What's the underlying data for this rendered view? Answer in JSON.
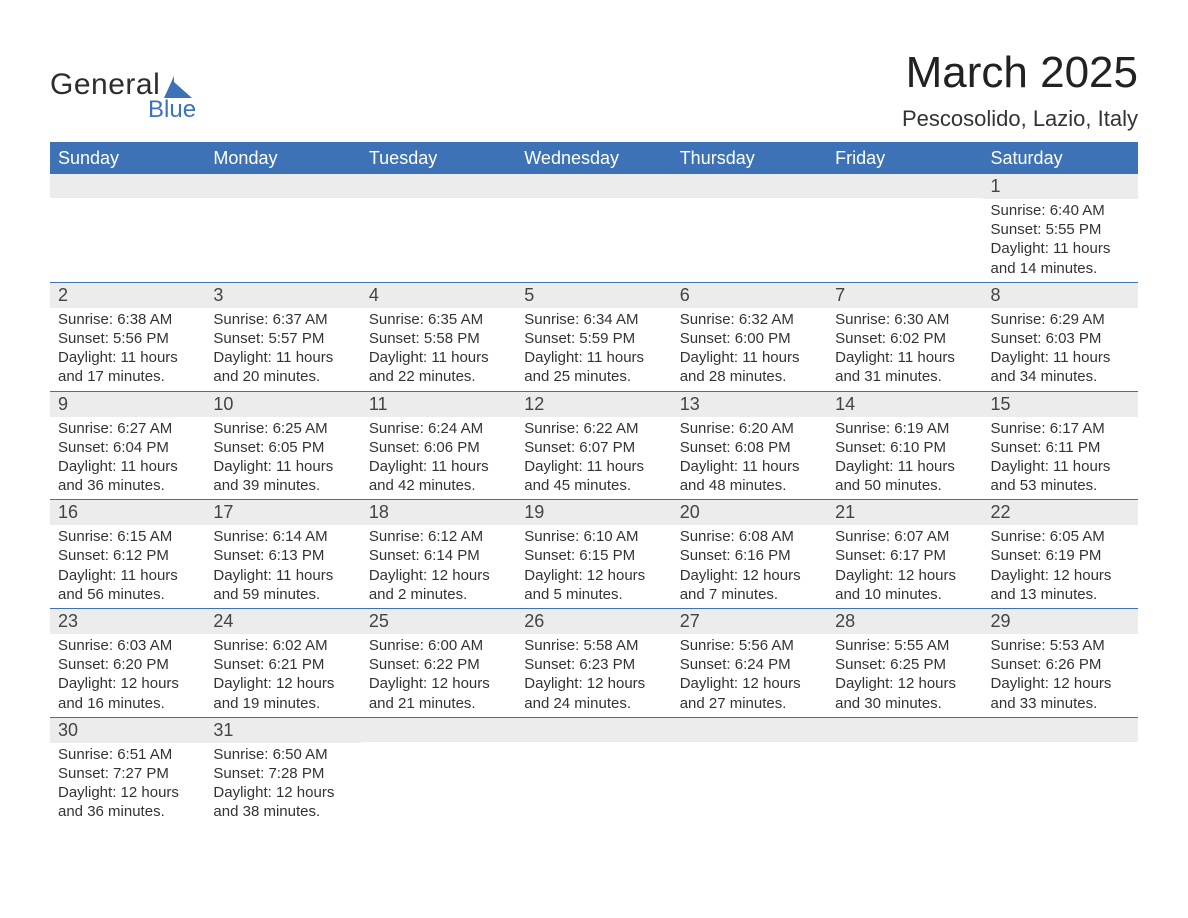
{
  "brand": {
    "general": "General",
    "blue": "Blue",
    "shape_color": "#3d73b6"
  },
  "header": {
    "month_title": "March 2025",
    "location": "Pescosolido, Lazio, Italy"
  },
  "colors": {
    "header_bg": "#3d73b6",
    "header_text": "#ffffff",
    "daynum_bg": "#ececec",
    "row_border": "#3d73b6",
    "body_text": "#333333",
    "page_bg": "#ffffff"
  },
  "weekdays": [
    "Sunday",
    "Monday",
    "Tuesday",
    "Wednesday",
    "Thursday",
    "Friday",
    "Saturday"
  ],
  "calendar": {
    "structure": "month-grid",
    "target_month": "2025-03",
    "start_weekday": "Saturday",
    "rows": 6,
    "cols": 7
  },
  "cells": [
    [
      {
        "empty": true
      },
      {
        "empty": true
      },
      {
        "empty": true
      },
      {
        "empty": true
      },
      {
        "empty": true
      },
      {
        "empty": true
      },
      {
        "day": "1",
        "sunrise": "Sunrise: 6:40 AM",
        "sunset": "Sunset: 5:55 PM",
        "daylight1": "Daylight: 11 hours",
        "daylight2": "and 14 minutes."
      }
    ],
    [
      {
        "day": "2",
        "sunrise": "Sunrise: 6:38 AM",
        "sunset": "Sunset: 5:56 PM",
        "daylight1": "Daylight: 11 hours",
        "daylight2": "and 17 minutes."
      },
      {
        "day": "3",
        "sunrise": "Sunrise: 6:37 AM",
        "sunset": "Sunset: 5:57 PM",
        "daylight1": "Daylight: 11 hours",
        "daylight2": "and 20 minutes."
      },
      {
        "day": "4",
        "sunrise": "Sunrise: 6:35 AM",
        "sunset": "Sunset: 5:58 PM",
        "daylight1": "Daylight: 11 hours",
        "daylight2": "and 22 minutes."
      },
      {
        "day": "5",
        "sunrise": "Sunrise: 6:34 AM",
        "sunset": "Sunset: 5:59 PM",
        "daylight1": "Daylight: 11 hours",
        "daylight2": "and 25 minutes."
      },
      {
        "day": "6",
        "sunrise": "Sunrise: 6:32 AM",
        "sunset": "Sunset: 6:00 PM",
        "daylight1": "Daylight: 11 hours",
        "daylight2": "and 28 minutes."
      },
      {
        "day": "7",
        "sunrise": "Sunrise: 6:30 AM",
        "sunset": "Sunset: 6:02 PM",
        "daylight1": "Daylight: 11 hours",
        "daylight2": "and 31 minutes."
      },
      {
        "day": "8",
        "sunrise": "Sunrise: 6:29 AM",
        "sunset": "Sunset: 6:03 PM",
        "daylight1": "Daylight: 11 hours",
        "daylight2": "and 34 minutes."
      }
    ],
    [
      {
        "day": "9",
        "sunrise": "Sunrise: 6:27 AM",
        "sunset": "Sunset: 6:04 PM",
        "daylight1": "Daylight: 11 hours",
        "daylight2": "and 36 minutes."
      },
      {
        "day": "10",
        "sunrise": "Sunrise: 6:25 AM",
        "sunset": "Sunset: 6:05 PM",
        "daylight1": "Daylight: 11 hours",
        "daylight2": "and 39 minutes."
      },
      {
        "day": "11",
        "sunrise": "Sunrise: 6:24 AM",
        "sunset": "Sunset: 6:06 PM",
        "daylight1": "Daylight: 11 hours",
        "daylight2": "and 42 minutes."
      },
      {
        "day": "12",
        "sunrise": "Sunrise: 6:22 AM",
        "sunset": "Sunset: 6:07 PM",
        "daylight1": "Daylight: 11 hours",
        "daylight2": "and 45 minutes."
      },
      {
        "day": "13",
        "sunrise": "Sunrise: 6:20 AM",
        "sunset": "Sunset: 6:08 PM",
        "daylight1": "Daylight: 11 hours",
        "daylight2": "and 48 minutes."
      },
      {
        "day": "14",
        "sunrise": "Sunrise: 6:19 AM",
        "sunset": "Sunset: 6:10 PM",
        "daylight1": "Daylight: 11 hours",
        "daylight2": "and 50 minutes."
      },
      {
        "day": "15",
        "sunrise": "Sunrise: 6:17 AM",
        "sunset": "Sunset: 6:11 PM",
        "daylight1": "Daylight: 11 hours",
        "daylight2": "and 53 minutes."
      }
    ],
    [
      {
        "day": "16",
        "sunrise": "Sunrise: 6:15 AM",
        "sunset": "Sunset: 6:12 PM",
        "daylight1": "Daylight: 11 hours",
        "daylight2": "and 56 minutes."
      },
      {
        "day": "17",
        "sunrise": "Sunrise: 6:14 AM",
        "sunset": "Sunset: 6:13 PM",
        "daylight1": "Daylight: 11 hours",
        "daylight2": "and 59 minutes."
      },
      {
        "day": "18",
        "sunrise": "Sunrise: 6:12 AM",
        "sunset": "Sunset: 6:14 PM",
        "daylight1": "Daylight: 12 hours",
        "daylight2": "and 2 minutes."
      },
      {
        "day": "19",
        "sunrise": "Sunrise: 6:10 AM",
        "sunset": "Sunset: 6:15 PM",
        "daylight1": "Daylight: 12 hours",
        "daylight2": "and 5 minutes."
      },
      {
        "day": "20",
        "sunrise": "Sunrise: 6:08 AM",
        "sunset": "Sunset: 6:16 PM",
        "daylight1": "Daylight: 12 hours",
        "daylight2": "and 7 minutes."
      },
      {
        "day": "21",
        "sunrise": "Sunrise: 6:07 AM",
        "sunset": "Sunset: 6:17 PM",
        "daylight1": "Daylight: 12 hours",
        "daylight2": "and 10 minutes."
      },
      {
        "day": "22",
        "sunrise": "Sunrise: 6:05 AM",
        "sunset": "Sunset: 6:19 PM",
        "daylight1": "Daylight: 12 hours",
        "daylight2": "and 13 minutes."
      }
    ],
    [
      {
        "day": "23",
        "sunrise": "Sunrise: 6:03 AM",
        "sunset": "Sunset: 6:20 PM",
        "daylight1": "Daylight: 12 hours",
        "daylight2": "and 16 minutes."
      },
      {
        "day": "24",
        "sunrise": "Sunrise: 6:02 AM",
        "sunset": "Sunset: 6:21 PM",
        "daylight1": "Daylight: 12 hours",
        "daylight2": "and 19 minutes."
      },
      {
        "day": "25",
        "sunrise": "Sunrise: 6:00 AM",
        "sunset": "Sunset: 6:22 PM",
        "daylight1": "Daylight: 12 hours",
        "daylight2": "and 21 minutes."
      },
      {
        "day": "26",
        "sunrise": "Sunrise: 5:58 AM",
        "sunset": "Sunset: 6:23 PM",
        "daylight1": "Daylight: 12 hours",
        "daylight2": "and 24 minutes."
      },
      {
        "day": "27",
        "sunrise": "Sunrise: 5:56 AM",
        "sunset": "Sunset: 6:24 PM",
        "daylight1": "Daylight: 12 hours",
        "daylight2": "and 27 minutes."
      },
      {
        "day": "28",
        "sunrise": "Sunrise: 5:55 AM",
        "sunset": "Sunset: 6:25 PM",
        "daylight1": "Daylight: 12 hours",
        "daylight2": "and 30 minutes."
      },
      {
        "day": "29",
        "sunrise": "Sunrise: 5:53 AM",
        "sunset": "Sunset: 6:26 PM",
        "daylight1": "Daylight: 12 hours",
        "daylight2": "and 33 minutes."
      }
    ],
    [
      {
        "day": "30",
        "sunrise": "Sunrise: 6:51 AM",
        "sunset": "Sunset: 7:27 PM",
        "daylight1": "Daylight: 12 hours",
        "daylight2": "and 36 minutes."
      },
      {
        "day": "31",
        "sunrise": "Sunrise: 6:50 AM",
        "sunset": "Sunset: 7:28 PM",
        "daylight1": "Daylight: 12 hours",
        "daylight2": "and 38 minutes."
      },
      {
        "empty": true
      },
      {
        "empty": true
      },
      {
        "empty": true
      },
      {
        "empty": true
      },
      {
        "empty": true
      }
    ]
  ]
}
